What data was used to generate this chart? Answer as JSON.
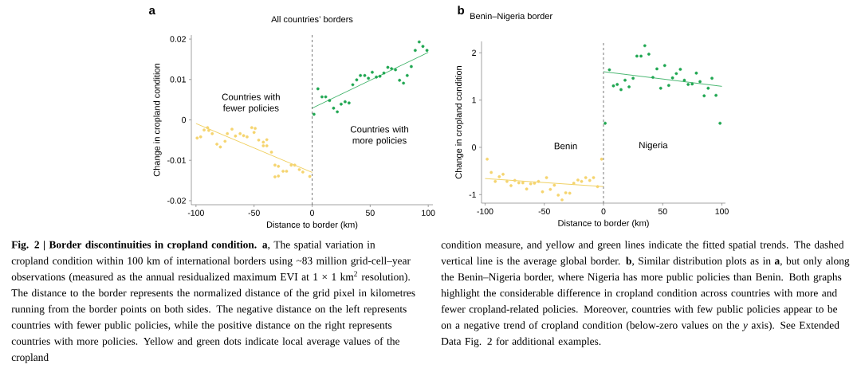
{
  "chart_data": [
    {
      "type": "scatter",
      "title": "All countries’ borders",
      "xlabel": "Distance to border (km)",
      "ylabel": "Change in cropland condition",
      "xlim": [
        -104,
        104
      ],
      "ylim": [
        -0.021,
        0.021
      ],
      "xticks": [
        -100,
        -50,
        0,
        50,
        100
      ],
      "yticks": [
        -0.02,
        -0.01,
        0,
        0.01,
        0.02
      ],
      "series": [
        {
          "marker": "circle",
          "color": "#f5d46e",
          "x": [
            -99,
            -96,
            -93,
            -90,
            -89,
            -86,
            -82,
            -79,
            -75,
            -73,
            -69,
            -66,
            -62,
            -59,
            -56,
            -52,
            -50,
            -49,
            -46,
            -42,
            -42,
            -39,
            -39,
            -35,
            -32,
            -32,
            -29,
            -29,
            -25,
            -22,
            -18,
            -15,
            -11,
            -8,
            -2
          ],
          "values": [
            -0.0045,
            -0.0042,
            -0.0025,
            -0.0019,
            -0.0026,
            -0.0034,
            -0.006,
            -0.0067,
            -0.0053,
            -0.0034,
            -0.0023,
            -0.004,
            -0.0034,
            -0.0039,
            -0.0042,
            -0.0019,
            -0.0031,
            -0.0021,
            -0.005,
            -0.0055,
            -0.0064,
            -0.0049,
            -0.0064,
            -0.008,
            -0.0112,
            -0.0141,
            -0.0115,
            -0.0139,
            -0.0127,
            -0.0127,
            -0.0112,
            -0.0112,
            -0.0123,
            -0.0129,
            -0.014
          ]
        },
        {
          "type": "line",
          "marker": "none",
          "color": "#ecc53e",
          "x": [
            -100,
            0
          ],
          "values": [
            -0.0009,
            -0.013
          ]
        },
        {
          "marker": "circle",
          "color": "#1fa651",
          "x": [
            1.6,
            5,
            8.5,
            11.7,
            15,
            18.5,
            21.7,
            25,
            28.4,
            31.8,
            35,
            38.4,
            41.6,
            45.3,
            48.5,
            51.8,
            55.3,
            58.4,
            61.8,
            65.2,
            68.4,
            71.8,
            75.3,
            78.7,
            81.9,
            85.4,
            88.8,
            92.2,
            95.4,
            98.9
          ],
          "values": [
            0.0014,
            0.0077,
            0.0057,
            0.0057,
            0.0048,
            0.0029,
            0.002,
            0.0039,
            0.0045,
            0.0042,
            0.0087,
            0.0099,
            0.011,
            0.011,
            0.0103,
            0.0118,
            0.0106,
            0.0108,
            0.0116,
            0.013,
            0.0127,
            0.0124,
            0.0098,
            0.0091,
            0.011,
            0.0132,
            0.0172,
            0.0193,
            0.0182,
            0.0172
          ]
        },
        {
          "type": "line",
          "marker": "none",
          "color": "#1fa651",
          "x": [
            0,
            100
          ],
          "values": [
            0.0029,
            0.0167
          ]
        }
      ],
      "ref_lines": [
        {
          "axis": "x",
          "value": 0,
          "color": "#555555",
          "line_style": "dashed"
        }
      ],
      "annotations": [
        "a",
        "Countries with fewer policies",
        "Countries with more policies",
        "**Fig. 2 | Border discontinuities in cropland condition. a**, The spatial variation in cropland condition within 100 km of international borders using ~83 million grid-cell–year observations (measured as the annual residualized maximum EVI at 1 × 1 km$^{2}$ resolution). The distance to the border represents the normalized distance of the grid pixel in kilometres running from the border points on both sides. The negative distance on the left represents countries with fewer public policies, while the positive distance on the right represents countries with more policies. Yellow and green dots indicate local average values of the cropland"
      ]
    },
    {
      "type": "scatter",
      "title": "Benin–Nigeria border",
      "xlabel": "Distance to border (km)",
      "ylabel": "Change in cropland condition",
      "xlim": [
        -103,
        103
      ],
      "ylim": [
        -1.18,
        2.24
      ],
      "xticks": [
        -100,
        -50,
        0,
        50,
        100
      ],
      "yticks": [
        -1,
        0,
        1,
        2
      ],
      "series": [
        {
          "marker": "circle",
          "color": "#f5d46e",
          "x": [
            -98.2,
            -94.8,
            -91.4,
            -88,
            -84.8,
            -81.5,
            -78.1,
            -74.9,
            -71.5,
            -68.1,
            -64.9,
            -61.5,
            -58.3,
            -54.9,
            -51.5,
            -48.1,
            -44.9,
            -41.5,
            -38.2,
            -35,
            -31.9,
            -28.5,
            -25.1,
            -21.6,
            -18.5,
            -15,
            -11.6,
            -8.4,
            -5,
            -1.6
          ],
          "values": [
            -0.25,
            -0.53,
            -0.72,
            -0.62,
            -0.57,
            -0.72,
            -0.81,
            -0.7,
            -0.75,
            -0.75,
            -0.88,
            -0.77,
            -0.76,
            -0.72,
            -0.94,
            -0.64,
            -0.89,
            -0.8,
            -1.01,
            -1.11,
            -0.96,
            -0.97,
            -0.76,
            -0.69,
            -0.72,
            -0.64,
            -0.7,
            -0.64,
            -0.83,
            -0.25
          ]
        },
        {
          "type": "line",
          "marker": "none",
          "color": "#ecc53e",
          "x": [
            -100,
            0
          ],
          "values": [
            -0.66,
            -0.83
          ]
        },
        {
          "marker": "circle",
          "color": "#1fa651",
          "x": [
            1.4,
            5,
            8.4,
            11.6,
            14.8,
            18.2,
            21.6,
            25,
            28.2,
            31.7,
            34.9,
            38.3,
            41.7,
            45.1,
            48.3,
            51.7,
            55.1,
            58.3,
            61.5,
            64.9,
            68.3,
            71.5,
            74.9,
            78.4,
            81.5,
            85,
            88.4,
            91.6,
            95,
            98.4
          ],
          "values": [
            0.51,
            1.64,
            1.3,
            1.33,
            1.22,
            1.42,
            1.28,
            1.46,
            1.93,
            1.93,
            2.15,
            1.97,
            1.48,
            1.66,
            1.25,
            1.73,
            1.31,
            1.47,
            1.56,
            1.65,
            1.42,
            1.33,
            1.34,
            1.57,
            1.39,
            1.09,
            1.25,
            1.46,
            1.1,
            0.51
          ]
        },
        {
          "type": "line",
          "marker": "none",
          "color": "#1fa651",
          "x": [
            0,
            100
          ],
          "values": [
            1.6,
            1.29
          ]
        }
      ],
      "ref_lines": [
        {
          "axis": "x",
          "value": 0,
          "color": "#555555",
          "line_style": "dashed"
        }
      ],
      "annotations": [
        "b",
        "Benin",
        "Nigeria",
        "condition measure, and yellow and green lines indicate the fitted spatial trends. The dashed vertical line is the average global border. **b**, Similar distribution plots as in **a**, but only along the Benin–Nigeria border, where Nigeria has more public policies than Benin. Both graphs highlight the considerable difference in cropland condition across countries with more and fewer cropland-related policies. Moreover, countries with few public policies appear to be on a negative trend of cropland condition (below-zero values on the *y* axis). See Extended Data Fig. 2 for additional examples."
      ]
    }
  ]
}
